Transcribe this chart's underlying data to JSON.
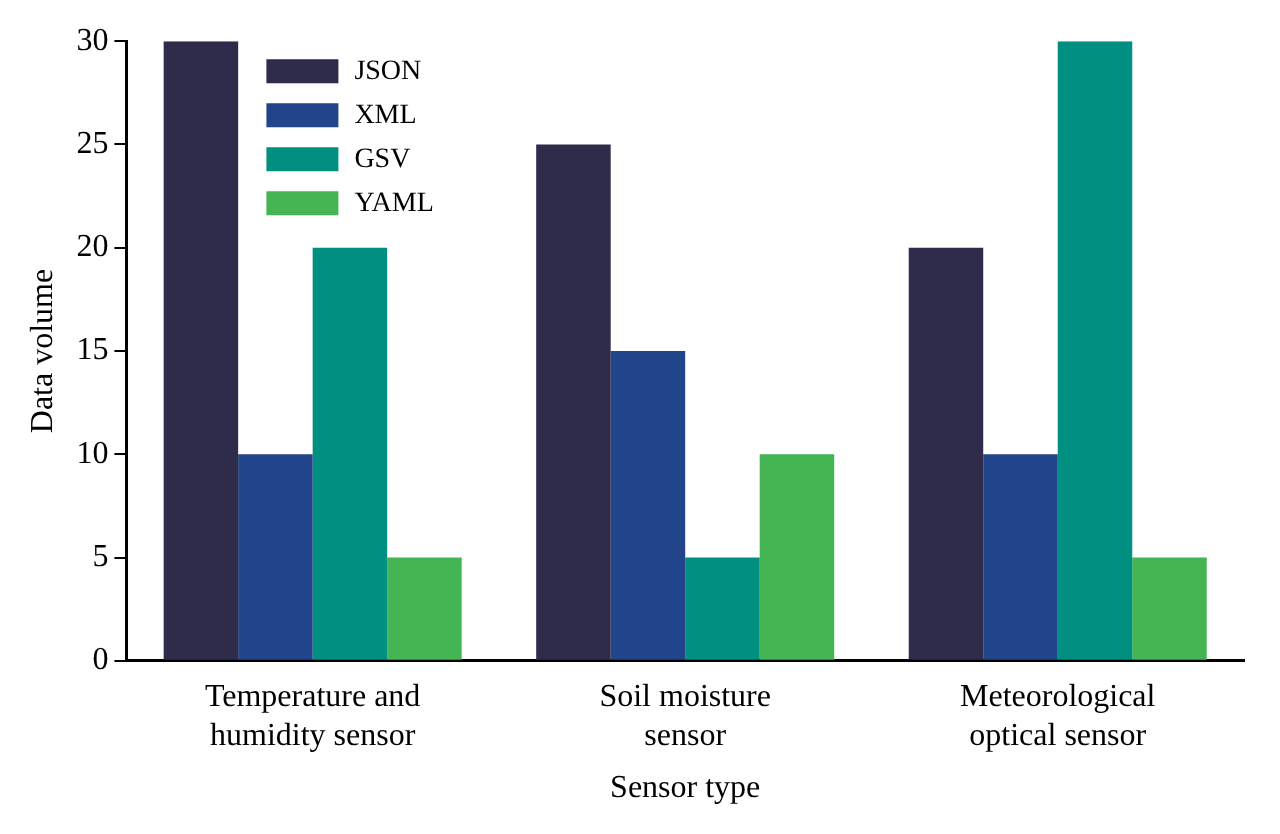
{
  "chart_data": {
    "type": "bar",
    "xlabel": "Sensor type",
    "ylabel": "Data volume",
    "categories": [
      "Temperature and humidity sensor",
      "Soil moisture sensor",
      "Meteorological optical sensor"
    ],
    "series": [
      {
        "name": "JSON",
        "color": "#2f2b4a",
        "values": [
          30,
          25,
          20
        ]
      },
      {
        "name": "XML",
        "color": "#22448a",
        "values": [
          10,
          15,
          10
        ]
      },
      {
        "name": "GSV",
        "color": "#008f80",
        "values": [
          20,
          5,
          30
        ]
      },
      {
        "name": "YAML",
        "color": "#45b553",
        "values": [
          5,
          10,
          5
        ]
      }
    ],
    "ylim": [
      0,
      30
    ],
    "yticks": [
      0,
      5,
      10,
      15,
      20,
      25,
      30
    ],
    "grid": false,
    "legend": "top left"
  }
}
